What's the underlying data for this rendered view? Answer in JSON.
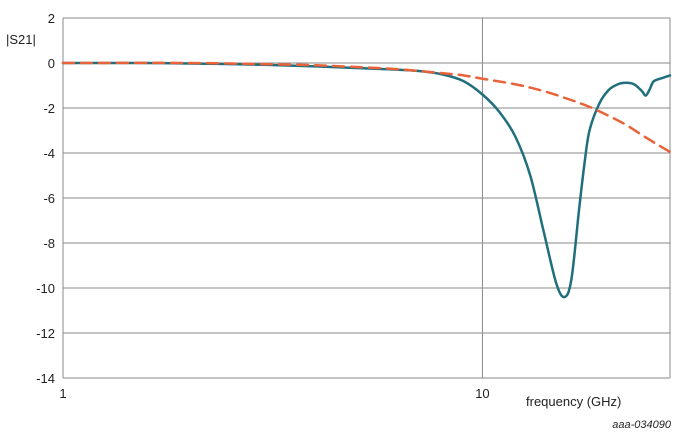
{
  "chart_data": {
    "type": "line",
    "ylabel": "|S21|",
    "xlabel": "frequency (GHz)",
    "figure_id": "aaa-034090",
    "x_scale": "log",
    "xlim": [
      1,
      28
    ],
    "ylim": [
      -14,
      2
    ],
    "x_ticks": [
      1,
      10
    ],
    "x_tick_labels": [
      "1",
      "10"
    ],
    "y_ticks": [
      2,
      0,
      -2,
      -4,
      -6,
      -8,
      -10,
      -12,
      -14
    ],
    "y_tick_labels": [
      "2",
      "0",
      "-2",
      "-4",
      "-6",
      "-8",
      "-10",
      "-12",
      "-14"
    ],
    "grid": true,
    "legend": "none",
    "series": [
      {
        "style": "solid",
        "color": "#1f6f7d",
        "x": [
          1,
          1.5,
          2,
          3,
          4,
          5,
          6,
          7,
          8,
          9,
          10,
          11,
          12,
          13,
          14,
          15,
          15.7,
          16.3,
          17,
          17.5,
          18,
          19,
          20,
          21,
          22,
          23,
          24,
          24.5,
          25,
          25.5,
          26,
          27,
          28
        ],
        "y": [
          0,
          0,
          -0.02,
          -0.08,
          -0.15,
          -0.22,
          -0.28,
          -0.35,
          -0.5,
          -0.8,
          -1.4,
          -2.2,
          -3.3,
          -5.0,
          -7.5,
          -9.8,
          -10.4,
          -9.6,
          -6.5,
          -4.5,
          -3.0,
          -1.8,
          -1.2,
          -0.95,
          -0.88,
          -0.95,
          -1.25,
          -1.45,
          -1.2,
          -0.85,
          -0.75,
          -0.65,
          -0.55
        ]
      },
      {
        "style": "dashed",
        "color": "#e8633a",
        "x": [
          1,
          2,
          3,
          4,
          5,
          6,
          7,
          8,
          9,
          10,
          12,
          14,
          16,
          18,
          20,
          22,
          24,
          26,
          28
        ],
        "y": [
          0,
          0,
          -0.05,
          -0.1,
          -0.18,
          -0.25,
          -0.35,
          -0.45,
          -0.55,
          -0.7,
          -0.95,
          -1.25,
          -1.6,
          -1.95,
          -2.35,
          -2.75,
          -3.2,
          -3.6,
          -3.95
        ]
      }
    ]
  }
}
